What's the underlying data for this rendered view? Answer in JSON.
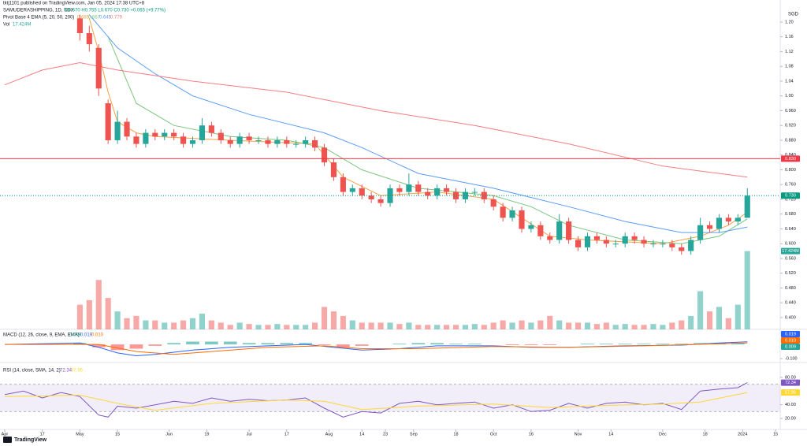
{
  "header": {
    "publisher": "tktj1101 published on TradingView.com, Jan 05, 2024 17:38 UTC+8",
    "symbol": "SAMUDERASHIPPING, 1D, SGX",
    "ohlc": "O0.670 H0.755 L0.670 C0.730 +0.065 (+9.77%)",
    "currency": "SGD",
    "logo": "TradingView"
  },
  "chart_data": [
    {
      "type": "candlestick",
      "xlim": [
        -0.5,
        82.5
      ],
      "xticks": [
        {
          "value": 0,
          "label": "Apr"
        },
        {
          "value": 4,
          "label": "17"
        },
        {
          "value": 8,
          "label": "May"
        },
        {
          "value": 12,
          "label": "15"
        },
        {
          "value": 17.5,
          "label": "Jun"
        },
        {
          "value": 21.5,
          "label": "19"
        },
        {
          "value": 26,
          "label": "Jul"
        },
        {
          "value": 30,
          "label": "17"
        },
        {
          "value": 34.5,
          "label": "Aug"
        },
        {
          "value": 38,
          "label": "14"
        },
        {
          "value": 40.5,
          "label": "23"
        },
        {
          "value": 43.5,
          "label": "Sep"
        },
        {
          "value": 48,
          "label": "18"
        },
        {
          "value": 52,
          "label": "Oct"
        },
        {
          "value": 56,
          "label": "16"
        },
        {
          "value": 61,
          "label": "Nov"
        },
        {
          "value": 64.5,
          "label": "14"
        },
        {
          "value": 70,
          "label": "Dec"
        },
        {
          "value": 74.5,
          "label": "18"
        },
        {
          "value": 78.5,
          "label": "2024"
        },
        {
          "value": 82,
          "label": "15"
        }
      ],
      "ylim": [
        0.37,
        1.22
      ],
      "yticks": [
        {
          "value": 1.2,
          "label": "1.20"
        },
        1.16,
        1.12,
        1.08,
        1.04,
        {
          "value": 1.0,
          "label": "1.00"
        },
        {
          "value": 0.96,
          "label": "0.960"
        },
        {
          "value": 0.92,
          "label": "0.920"
        },
        {
          "value": 0.88,
          "label": "0.880"
        },
        {
          "value": 0.84,
          "label": "0.840"
        },
        {
          "value": 0.8,
          "label": "0.800"
        },
        {
          "value": 0.76,
          "label": "0.760"
        },
        {
          "value": 0.72,
          "label": "0.720"
        },
        {
          "value": 0.68,
          "label": "0.680"
        },
        {
          "value": 0.64,
          "label": "0.640"
        },
        {
          "value": 0.6,
          "label": "0.600"
        },
        {
          "value": 0.56,
          "label": "0.560"
        },
        {
          "value": 0.52,
          "label": "0.520"
        },
        {
          "value": 0.48,
          "label": "0.480"
        },
        {
          "value": 0.44,
          "label": "0.440"
        },
        {
          "value": 0.4,
          "label": "0.400"
        }
      ],
      "x": [
        8,
        9,
        10,
        11,
        12,
        13,
        14,
        15,
        16,
        17,
        18,
        19,
        20,
        21,
        22,
        23,
        24,
        25,
        26,
        27,
        28,
        29,
        30,
        31,
        32,
        33,
        34,
        35,
        36,
        37,
        38,
        39,
        40,
        41,
        42,
        43,
        44,
        45,
        46,
        47,
        48,
        49,
        50,
        51,
        52,
        53,
        54,
        55,
        56,
        57,
        58,
        59,
        60,
        61,
        62,
        63,
        64,
        65,
        66,
        67,
        68,
        69,
        70,
        71,
        72,
        73,
        74,
        75,
        76,
        77,
        78,
        79
      ],
      "open": [
        1.21,
        1.17,
        1.13,
        0.98,
        0.88,
        0.93,
        0.89,
        0.87,
        0.9,
        0.89,
        0.9,
        0.89,
        0.87,
        0.88,
        0.92,
        0.9,
        0.88,
        0.87,
        0.89,
        0.88,
        0.88,
        0.87,
        0.88,
        0.87,
        0.87,
        0.88,
        0.86,
        0.82,
        0.78,
        0.74,
        0.75,
        0.73,
        0.72,
        0.71,
        0.75,
        0.74,
        0.76,
        0.74,
        0.73,
        0.75,
        0.74,
        0.72,
        0.74,
        0.74,
        0.72,
        0.7,
        0.67,
        0.69,
        0.64,
        0.65,
        0.62,
        0.61,
        0.66,
        0.61,
        0.59,
        0.62,
        0.61,
        0.6,
        0.6,
        0.62,
        0.61,
        0.6,
        0.6,
        0.6,
        0.59,
        0.58,
        0.61,
        0.65,
        0.64,
        0.67,
        0.66,
        0.67
      ],
      "high": [
        1.22,
        1.19,
        1.14,
        0.99,
        0.96,
        0.94,
        0.9,
        0.91,
        0.91,
        0.91,
        0.91,
        0.9,
        0.89,
        0.94,
        0.93,
        0.91,
        0.89,
        0.9,
        0.9,
        0.89,
        0.89,
        0.89,
        0.89,
        0.88,
        0.89,
        0.89,
        0.87,
        0.83,
        0.79,
        0.76,
        0.76,
        0.74,
        0.73,
        0.76,
        0.76,
        0.79,
        0.77,
        0.75,
        0.76,
        0.76,
        0.75,
        0.75,
        0.75,
        0.75,
        0.73,
        0.71,
        0.7,
        0.7,
        0.66,
        0.66,
        0.63,
        0.68,
        0.67,
        0.62,
        0.63,
        0.63,
        0.62,
        0.61,
        0.63,
        0.63,
        0.62,
        0.61,
        0.61,
        0.61,
        0.6,
        0.62,
        0.67,
        0.66,
        0.68,
        0.68,
        0.68,
        0.75
      ],
      "low": [
        1.15,
        1.12,
        1.0,
        0.87,
        0.87,
        0.88,
        0.86,
        0.86,
        0.88,
        0.88,
        0.88,
        0.86,
        0.86,
        0.87,
        0.89,
        0.87,
        0.86,
        0.86,
        0.87,
        0.87,
        0.86,
        0.86,
        0.86,
        0.86,
        0.86,
        0.85,
        0.81,
        0.77,
        0.73,
        0.73,
        0.72,
        0.71,
        0.7,
        0.7,
        0.73,
        0.73,
        0.73,
        0.72,
        0.72,
        0.73,
        0.71,
        0.71,
        0.73,
        0.71,
        0.69,
        0.66,
        0.66,
        0.63,
        0.63,
        0.61,
        0.6,
        0.6,
        0.6,
        0.58,
        0.58,
        0.6,
        0.59,
        0.59,
        0.59,
        0.6,
        0.59,
        0.59,
        0.59,
        0.58,
        0.57,
        0.57,
        0.6,
        0.63,
        0.63,
        0.65,
        0.65,
        0.67
      ],
      "close": [
        1.17,
        1.14,
        1.02,
        0.88,
        0.93,
        0.89,
        0.87,
        0.9,
        0.89,
        0.9,
        0.89,
        0.87,
        0.88,
        0.92,
        0.9,
        0.88,
        0.87,
        0.89,
        0.88,
        0.88,
        0.87,
        0.88,
        0.87,
        0.87,
        0.88,
        0.86,
        0.82,
        0.78,
        0.74,
        0.75,
        0.73,
        0.72,
        0.71,
        0.75,
        0.74,
        0.76,
        0.74,
        0.73,
        0.75,
        0.74,
        0.72,
        0.74,
        0.74,
        0.72,
        0.7,
        0.67,
        0.69,
        0.64,
        0.65,
        0.62,
        0.61,
        0.66,
        0.61,
        0.59,
        0.62,
        0.61,
        0.6,
        0.6,
        0.62,
        0.61,
        0.6,
        0.6,
        0.6,
        0.59,
        0.58,
        0.61,
        0.65,
        0.64,
        0.67,
        0.66,
        0.67,
        0.73
      ],
      "volume": [
        5.5,
        6.5,
        11,
        7,
        4,
        2.5,
        3,
        2,
        2,
        1.5,
        1.5,
        2,
        2.5,
        3.5,
        2,
        1.5,
        1,
        1.5,
        1.2,
        1,
        1,
        1.2,
        1,
        1,
        1,
        1.5,
        5,
        4,
        3,
        2,
        1.5,
        1.5,
        1.5,
        1.5,
        1.2,
        1.5,
        1,
        1,
        1,
        1,
        1,
        1,
        1.2,
        1,
        1.5,
        2,
        1.5,
        2,
        1.5,
        2,
        3,
        2,
        1.5,
        1.5,
        1.5,
        1.2,
        1.5,
        1,
        1.2,
        1,
        1,
        1.2,
        1,
        1.5,
        2,
        3,
        8.5,
        4,
        5,
        2.5,
        5.5,
        17.424
      ],
      "up_color": "#26a69a",
      "down_color": "#ef5350",
      "volume_legend": "Vol",
      "volume_label": "17.424M",
      "ema_legend": "Pivot Base 4 EMA (5, 20, 50, 200)",
      "series": [
        {
          "color": "#f7a145",
          "last_label": "0.685",
          "x": [
            9,
            10,
            11,
            12,
            14,
            16,
            24,
            33,
            36,
            40,
            46,
            52,
            55,
            58,
            62,
            70,
            74,
            77,
            79
          ],
          "values": [
            1.21,
            1.12,
            1.01,
            0.93,
            0.9,
            0.89,
            0.88,
            0.87,
            0.78,
            0.73,
            0.74,
            0.72,
            0.67,
            0.62,
            0.61,
            0.6,
            0.62,
            0.65,
            0.685
          ]
        },
        {
          "color": "#7bc67e",
          "last_label": "0.667",
          "x": [
            11,
            14,
            18,
            24,
            30,
            34,
            38,
            44,
            52,
            56,
            60,
            66,
            72,
            76,
            79
          ],
          "values": [
            1.16,
            0.98,
            0.92,
            0.89,
            0.88,
            0.86,
            0.8,
            0.75,
            0.73,
            0.7,
            0.65,
            0.61,
            0.6,
            0.62,
            0.667
          ]
        },
        {
          "color": "#5b9cf6",
          "last_label": "0.645",
          "x": [
            9,
            12,
            16,
            20,
            26,
            34,
            38,
            44,
            52,
            60,
            66,
            72,
            76,
            79
          ],
          "values": [
            1.22,
            1.13,
            1.06,
            1.0,
            0.95,
            0.9,
            0.86,
            0.79,
            0.75,
            0.7,
            0.66,
            0.63,
            0.63,
            0.645
          ]
        },
        {
          "color": "#f77c80",
          "last_label": "0.779",
          "x": [
            0,
            4,
            8,
            12,
            20,
            30,
            40,
            50,
            60,
            70,
            79
          ],
          "values": [
            1.03,
            1.07,
            1.09,
            1.07,
            1.04,
            1.01,
            0.96,
            0.92,
            0.87,
            0.81,
            0.78
          ]
        }
      ],
      "hlines": [
        {
          "value": 0.83,
          "label": "0.830",
          "color": "#f23645"
        }
      ],
      "price_line": {
        "value": 0.73,
        "label": "0.730",
        "color": "#089981"
      }
    },
    {
      "type": "macd",
      "legend": "MACD (12, 26, close, 9, EMA, EMA)",
      "ylim": [
        -0.105,
        0.095
      ],
      "yticks": [
        {
          "value": -0.1,
          "label": "-0.100"
        }
      ],
      "hist": {
        "last_label": "0.009",
        "x": [
          8,
          10,
          12,
          14,
          16,
          18,
          20,
          22,
          24,
          26,
          28,
          30,
          32,
          34,
          36,
          38,
          40,
          42,
          44,
          46,
          48,
          50,
          52,
          54,
          56,
          58,
          60,
          62,
          64,
          66,
          68,
          70,
          72,
          74,
          76,
          78
        ],
        "values": [
          0.01,
          -0.02,
          -0.04,
          -0.03,
          -0.01,
          0.01,
          0.02,
          0.02,
          0.02,
          0.01,
          0.01,
          0.01,
          0.01,
          -0.005,
          -0.02,
          -0.01,
          0.0,
          0.005,
          0.01,
          0.01,
          0.005,
          0.005,
          0.0,
          -0.005,
          -0.005,
          -0.005,
          0.0,
          0.005,
          0.005,
          0.005,
          0.005,
          0.005,
          0.005,
          0.01,
          0.01,
          0.009
        ],
        "up_color": "#26a69a",
        "down_color": "#ff5252"
      },
      "series": [
        {
          "color": "#2962ff",
          "last_label": "0.019",
          "x": [
            0,
            8,
            10,
            12,
            14,
            16,
            20,
            24,
            28,
            32,
            35,
            38,
            42,
            46,
            52,
            56,
            60,
            66,
            72,
            76,
            79
          ],
          "values": [
            0.0,
            0.01,
            -0.02,
            -0.06,
            -0.08,
            -0.07,
            -0.04,
            -0.02,
            -0.01,
            0.0,
            -0.02,
            -0.04,
            -0.03,
            -0.01,
            -0.01,
            -0.02,
            -0.02,
            -0.01,
            -0.005,
            0.01,
            0.019
          ]
        },
        {
          "color": "#ff6d00",
          "last_label": "0.010",
          "x": [
            0,
            10,
            14,
            18,
            22,
            28,
            34,
            38,
            44,
            52,
            60,
            68,
            76,
            79
          ],
          "values": [
            0.0,
            0.0,
            -0.05,
            -0.07,
            -0.05,
            -0.02,
            -0.01,
            -0.03,
            -0.03,
            -0.015,
            -0.02,
            -0.01,
            0.005,
            0.01
          ]
        }
      ]
    },
    {
      "type": "rsi",
      "legend": "RSI (14, close, SMA, 14, 2)",
      "ylim": [
        10,
        84
      ],
      "yticks": [
        {
          "value": 80,
          "label": "80.00"
        },
        {
          "value": 40,
          "label": "40.00"
        },
        {
          "value": 20,
          "label": "20.00"
        }
      ],
      "band": [
        30,
        70
      ],
      "band_color": "#7e57c2",
      "series": [
        {
          "color": "#7e57c2",
          "last_label": "72.34",
          "x": [
            0,
            2,
            4,
            6,
            8,
            10,
            11,
            12,
            14,
            16,
            18,
            20,
            22,
            24,
            26,
            28,
            30,
            32,
            34,
            36,
            38,
            40,
            42,
            44,
            46,
            48,
            50,
            52,
            54,
            56,
            58,
            60,
            62,
            64,
            66,
            68,
            70,
            72,
            74,
            76,
            78,
            79
          ],
          "values": [
            55,
            60,
            50,
            58,
            52,
            25,
            22,
            38,
            35,
            40,
            45,
            42,
            50,
            45,
            48,
            46,
            47,
            50,
            35,
            22,
            30,
            28,
            42,
            45,
            40,
            42,
            44,
            35,
            40,
            30,
            32,
            42,
            35,
            42,
            44,
            40,
            42,
            33,
            60,
            63,
            65,
            72.34
          ]
        },
        {
          "color": "#fdd835",
          "last_label": "57.96",
          "x": [
            0,
            8,
            12,
            16,
            22,
            30,
            34,
            38,
            44,
            52,
            58,
            64,
            70,
            74,
            79
          ],
          "values": [
            52,
            54,
            42,
            32,
            42,
            47,
            45,
            33,
            38,
            41,
            36,
            39,
            41,
            44,
            57.96
          ]
        }
      ]
    }
  ]
}
